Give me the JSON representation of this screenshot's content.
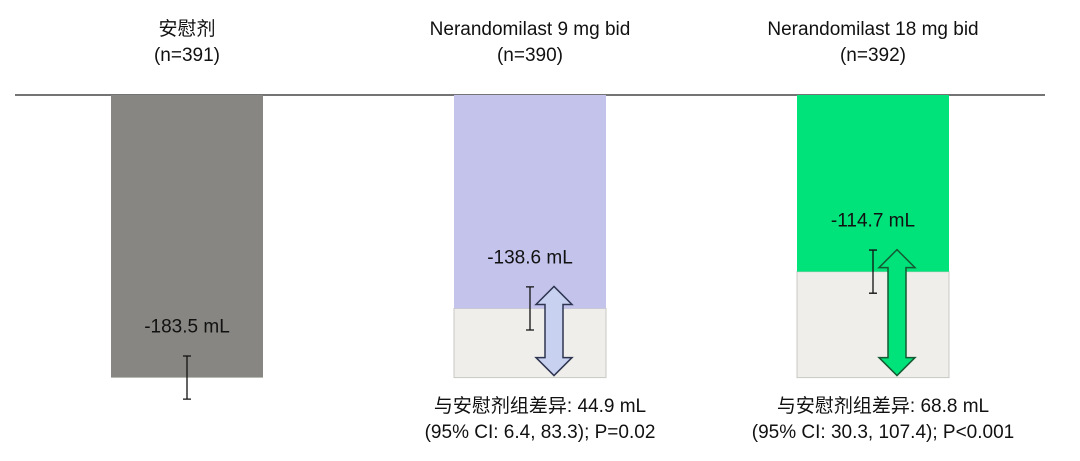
{
  "chart_data": {
    "type": "bar",
    "categories": [
      "安慰剂",
      "Nerandomilast 9 mg bid",
      "Nerandomilast 18 mg bid"
    ],
    "category_notes": [
      "(n=391)",
      "(n=390)",
      "(n=392)"
    ],
    "values": [
      -183.5,
      -138.6,
      -114.7
    ],
    "value_labels": [
      "-183.5 mL",
      "-138.6 mL",
      "-114.7 mL"
    ],
    "errors": [
      14,
      14,
      14
    ],
    "colors": [
      "#878682",
      "#c4c3ec",
      "#00e27a"
    ],
    "differences": [
      null,
      44.9,
      68.8
    ],
    "difference_colors": [
      null,
      "#c9d1f0",
      "#00e27a"
    ],
    "difference_notes": [
      null,
      [
        "与安慰剂组差异: 44.9 mL",
        "(95% CI: 6.4, 83.3); P=0.02"
      ],
      [
        "与安慰剂组差异: 68.8 mL",
        "(95% CI: 30.3, 107.4); P<0.001"
      ]
    ],
    "ylim": [
      -200,
      0
    ]
  }
}
